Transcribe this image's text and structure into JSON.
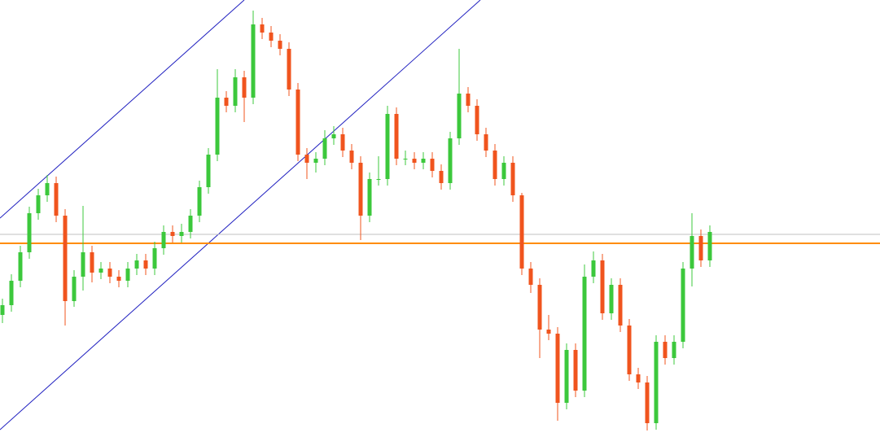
{
  "chart_data": {
    "type": "candlestick",
    "ylim": [
      0,
      537
    ],
    "up_color": "#3cc83c",
    "down_color": "#f0541e",
    "hlines": [
      {
        "value": 249,
        "color": "#c0c0c0"
      },
      {
        "value": 238,
        "color": "#ff8c00"
      }
    ],
    "open": [
      150,
      162,
      192,
      227,
      275,
      297,
      312,
      272,
      167,
      197,
      227,
      202,
      207,
      197,
      192,
      207,
      217,
      207,
      232,
      252,
      247,
      252,
      272,
      307,
      347,
      417,
      407,
      442,
      417,
      507,
      497,
      487,
      477,
      427,
      347,
      337,
      342,
      367,
      372,
      352,
      337,
      272,
      317,
      317,
      397,
      342,
      342,
      337,
      342,
      327,
      312,
      367,
      422,
      407,
      372,
      352,
      317,
      337,
      297,
      207,
      187,
      132,
      127,
      42,
      107,
      57,
      197,
      217,
      152,
      187,
      137,
      77,
      67,
      17,
      117,
      97,
      117,
      207,
      247,
      217
    ],
    "high": [
      170,
      200,
      235,
      283,
      305,
      322,
      320,
      280,
      205,
      284,
      235,
      215,
      215,
      205,
      215,
      225,
      225,
      240,
      260,
      260,
      262,
      280,
      315,
      355,
      452,
      425,
      452,
      450,
      524,
      515,
      505,
      495,
      485,
      435,
      355,
      350,
      377,
      382,
      380,
      360,
      345,
      325,
      345,
      407,
      405,
      352,
      350,
      350,
      350,
      335,
      375,
      477,
      430,
      415,
      380,
      360,
      345,
      345,
      300,
      215,
      195,
      150,
      135,
      115,
      115,
      212,
      228,
      225,
      195,
      195,
      145,
      85,
      75,
      125,
      125,
      125,
      215,
      275,
      255,
      260
    ],
    "low": [
      140,
      154,
      184,
      219,
      267,
      289,
      264,
      137,
      160,
      180,
      190,
      194,
      189,
      184,
      184,
      199,
      199,
      199,
      224,
      239,
      239,
      244,
      264,
      299,
      339,
      399,
      399,
      387,
      409,
      489,
      479,
      469,
      419,
      339,
      317,
      325,
      334,
      359,
      344,
      329,
      242,
      264,
      309,
      309,
      334,
      334,
      329,
      329,
      319,
      304,
      304,
      359,
      399,
      364,
      344,
      309,
      309,
      289,
      199,
      177,
      97,
      119,
      20,
      34,
      49,
      49,
      189,
      144,
      144,
      129,
      69,
      59,
      8,
      9,
      89,
      89,
      109,
      185,
      209,
      209
    ],
    "close": [
      162,
      192,
      227,
      275,
      297,
      312,
      272,
      167,
      197,
      227,
      202,
      207,
      197,
      192,
      207,
      217,
      207,
      232,
      252,
      247,
      252,
      272,
      307,
      347,
      417,
      407,
      442,
      417,
      507,
      497,
      487,
      477,
      427,
      347,
      337,
      342,
      367,
      372,
      352,
      337,
      272,
      317,
      317,
      397,
      342,
      342,
      337,
      342,
      327,
      312,
      367,
      422,
      407,
      372,
      352,
      317,
      337,
      297,
      207,
      187,
      132,
      127,
      42,
      107,
      57,
      197,
      217,
      152,
      187,
      137,
      77,
      67,
      17,
      117,
      97,
      117,
      207,
      247,
      217,
      252
    ]
  }
}
